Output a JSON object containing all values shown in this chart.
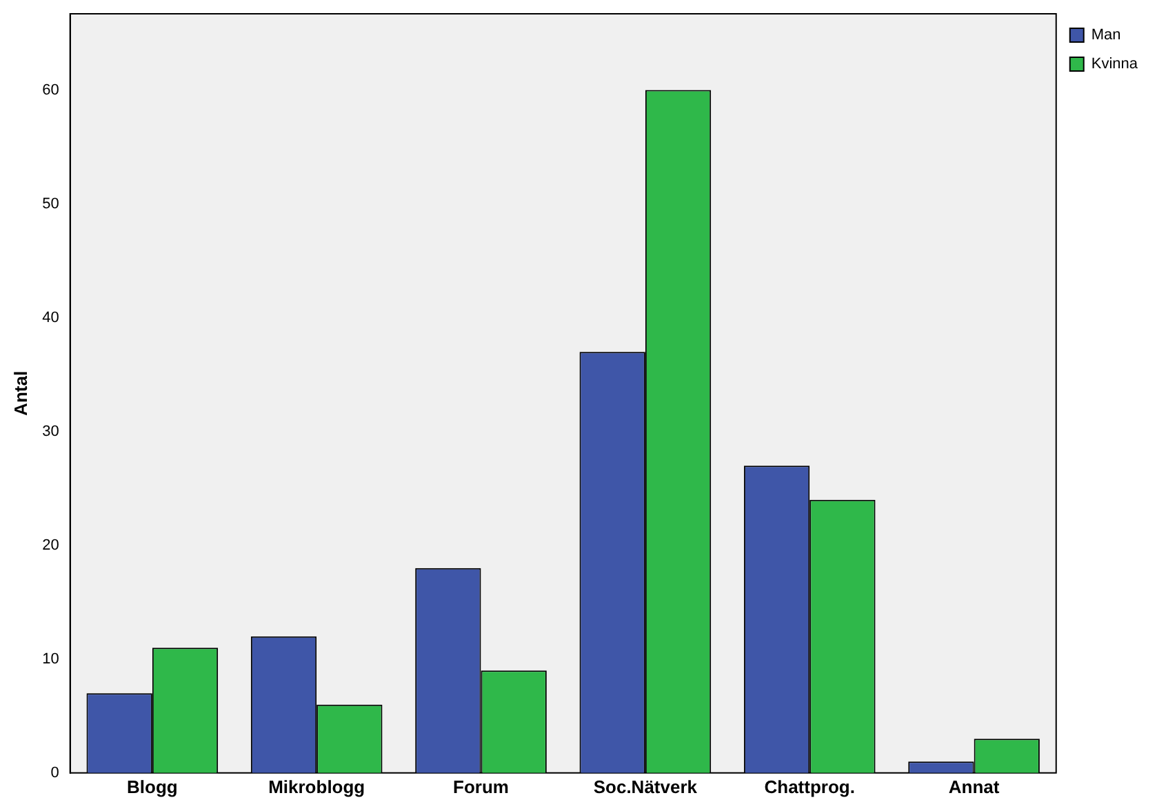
{
  "chart_data": {
    "type": "bar",
    "ylabel": "Antal",
    "categories": [
      "Blogg",
      "Mikroblogg",
      "Forum",
      "Soc.Nätverk",
      "Chattprog.",
      "Annat"
    ],
    "series": [
      {
        "name": "Man",
        "color": "#3f56a8",
        "values": [
          7,
          12,
          18,
          37,
          27,
          1
        ]
      },
      {
        "name": "Kvinna",
        "color": "#2fb84a",
        "values": [
          11,
          6,
          9,
          60,
          24,
          3
        ]
      }
    ],
    "ylim": [
      0,
      66.7
    ],
    "yticks": [
      0,
      10,
      20,
      30,
      40,
      50,
      60
    ],
    "grid": false,
    "legend": "top right"
  }
}
